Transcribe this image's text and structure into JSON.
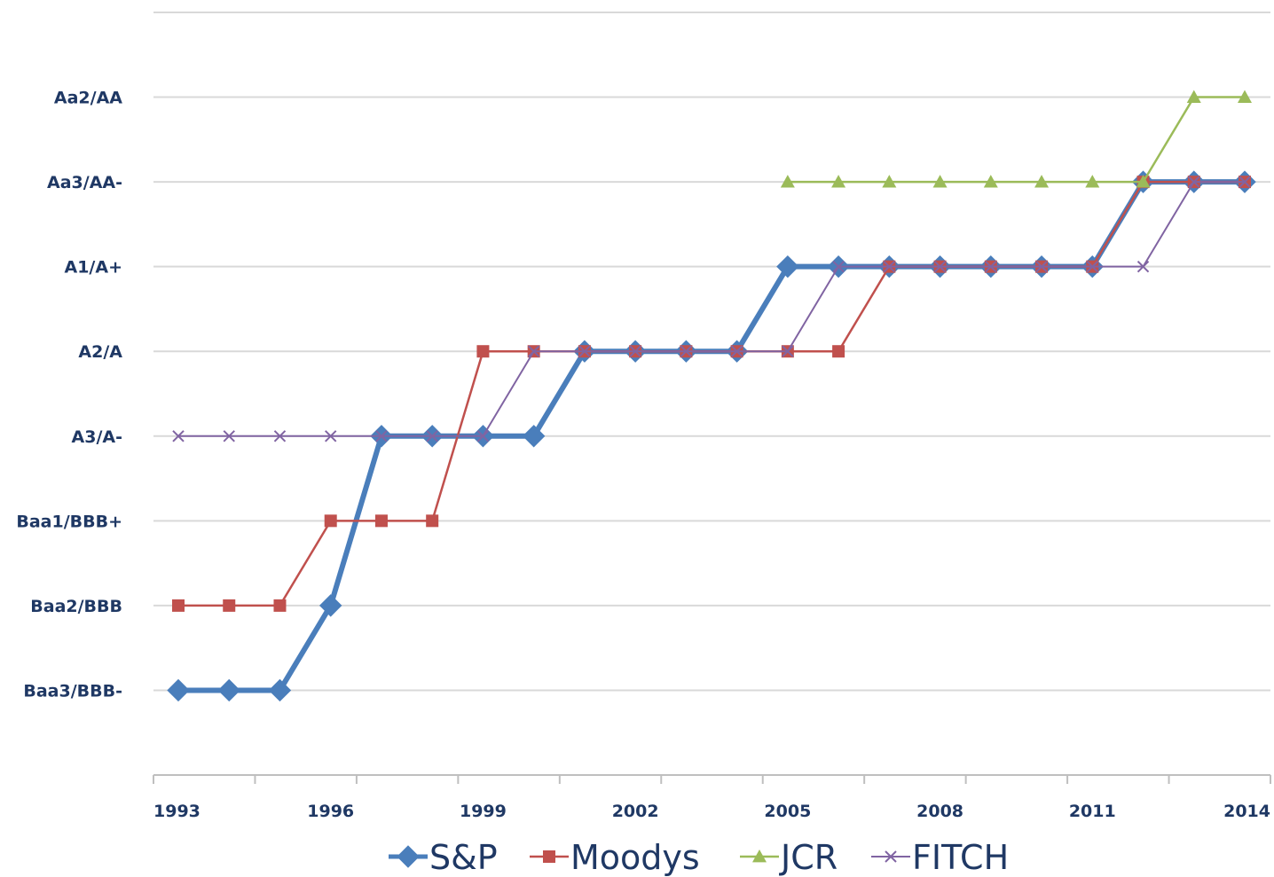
{
  "chart_data": {
    "type": "line",
    "title": "",
    "xlabel": "",
    "ylabel": "",
    "x": [
      1993,
      1994,
      1995,
      1996,
      1997,
      1998,
      1999,
      2000,
      2001,
      2002,
      2003,
      2004,
      2005,
      2006,
      2007,
      2008,
      2009,
      2010,
      2011,
      2012,
      2013,
      2014
    ],
    "x_tick_labels": [
      "1993",
      "1996",
      "1999",
      "2002",
      "2005",
      "2008",
      "2011",
      "2014"
    ],
    "y_categories": [
      "Baa3/BBB-",
      "Baa2/BBB",
      "Baa1/BBB+",
      "A3/A-",
      "A2/A",
      "A1/A+",
      "Aa3/AA-",
      "Aa2/AA"
    ],
    "ylim": [
      -1,
      8
    ],
    "grid": true,
    "legend_position": "bottom",
    "series": [
      {
        "name": "S&P",
        "color": "#4a7ebb",
        "marker": "diamond",
        "values": [
          0,
          0,
          0,
          1,
          3,
          3,
          3,
          3,
          4,
          4,
          4,
          4,
          5,
          5,
          5,
          5,
          5,
          5,
          5,
          6,
          6,
          6
        ]
      },
      {
        "name": "Moodys",
        "color": "#c0504d",
        "marker": "square",
        "values": [
          1,
          1,
          1,
          2,
          2,
          2,
          4,
          4,
          4,
          4,
          4,
          4,
          4,
          4,
          5,
          5,
          5,
          5,
          5,
          6,
          6,
          6
        ]
      },
      {
        "name": "JCR",
        "color": "#9bbb59",
        "marker": "triangle",
        "values": [
          null,
          null,
          null,
          null,
          null,
          null,
          null,
          null,
          null,
          null,
          null,
          null,
          6,
          6,
          6,
          6,
          6,
          6,
          6,
          6,
          7,
          7
        ]
      },
      {
        "name": "FITCH",
        "color": "#8064a2",
        "marker": "x",
        "values": [
          3,
          3,
          3,
          3,
          3,
          3,
          3,
          4,
          4,
          4,
          4,
          4,
          4,
          5,
          5,
          5,
          5,
          5,
          5,
          5,
          6,
          6
        ]
      }
    ]
  }
}
